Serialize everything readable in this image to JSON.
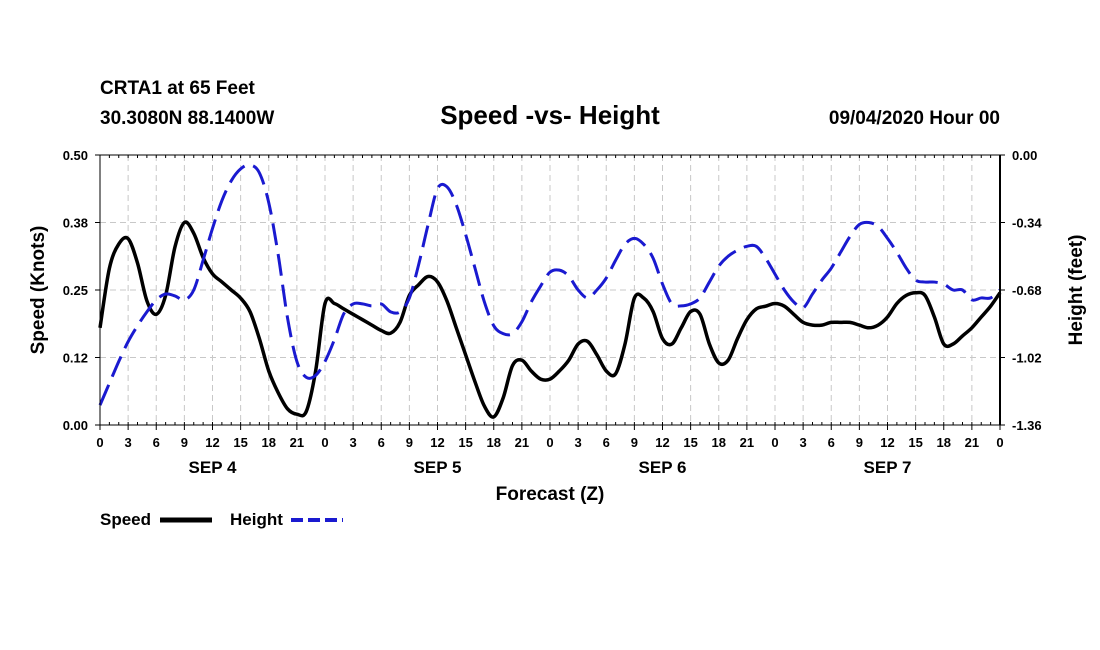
{
  "header": {
    "station": "CRTA1 at 65 Feet",
    "coords": "30.3080N 88.1400W",
    "title": "Speed -vs- Height",
    "datetime": "09/04/2020 Hour 00"
  },
  "colors": {
    "speed": "#000000",
    "height": "#1a1ad0"
  },
  "chart_data": {
    "type": "line",
    "title": "Speed -vs- Height",
    "xlabel": "Forecast (Z)",
    "ylabel": "Speed (Knots)",
    "y2label": "Height (feet)",
    "xlim": [
      0,
      96
    ],
    "ylim": [
      0,
      0.5
    ],
    "y2lim": [
      -1.36,
      0.0
    ],
    "yticks": [
      "0.00",
      "0.12",
      "0.25",
      "0.38",
      "0.50"
    ],
    "y2ticks": [
      "-1.36",
      "-1.02",
      "-0.68",
      "-0.34",
      "0.00"
    ],
    "xtick_labels": [
      "0",
      "3",
      "6",
      "9",
      "12",
      "15",
      "18",
      "21",
      "0",
      "3",
      "6",
      "9",
      "12",
      "15",
      "18",
      "21",
      "0",
      "3",
      "6",
      "9",
      "12",
      "15",
      "18",
      "21",
      "0",
      "3",
      "6",
      "9",
      "12",
      "15",
      "18",
      "21",
      "0"
    ],
    "days": [
      {
        "label": "SEP 4",
        "hour": 12
      },
      {
        "label": "SEP 5",
        "hour": 36
      },
      {
        "label": "SEP 6",
        "hour": 60
      },
      {
        "label": "SEP 7",
        "hour": 84
      }
    ],
    "legend": {
      "position": "bottom-left"
    },
    "series": [
      {
        "name": "Speed",
        "axis": "left",
        "style": "solid",
        "x": [
          0,
          1,
          2,
          3,
          4,
          5,
          6,
          7,
          8,
          9,
          10,
          11,
          12,
          13,
          14,
          15,
          16,
          17,
          18,
          19,
          20,
          21,
          22,
          23,
          24,
          25,
          26,
          27,
          28,
          29,
          30,
          31,
          32,
          33,
          34,
          35,
          36,
          37,
          38,
          39,
          40,
          41,
          42,
          43,
          44,
          45,
          46,
          47,
          48,
          49,
          50,
          51,
          52,
          53,
          54,
          55,
          56,
          57,
          58,
          59,
          60,
          61,
          62,
          63,
          64,
          65,
          66,
          67,
          68,
          69,
          70,
          71,
          72,
          73,
          74,
          75,
          76,
          77,
          78,
          79,
          80,
          81,
          82,
          83,
          84,
          85,
          86,
          87,
          88,
          89,
          90,
          91,
          92,
          93,
          94,
          95,
          96
        ],
        "values": [
          0.18,
          0.29,
          0.335,
          0.345,
          0.3,
          0.23,
          0.205,
          0.24,
          0.33,
          0.375,
          0.355,
          0.31,
          0.28,
          0.265,
          0.25,
          0.235,
          0.21,
          0.16,
          0.1,
          0.06,
          0.03,
          0.02,
          0.025,
          0.1,
          0.225,
          0.225,
          0.215,
          0.205,
          0.195,
          0.185,
          0.175,
          0.17,
          0.19,
          0.24,
          0.26,
          0.275,
          0.265,
          0.23,
          0.18,
          0.13,
          0.08,
          0.035,
          0.015,
          0.05,
          0.11,
          0.12,
          0.1,
          0.085,
          0.085,
          0.1,
          0.12,
          0.15,
          0.155,
          0.13,
          0.1,
          0.095,
          0.15,
          0.235,
          0.235,
          0.21,
          0.16,
          0.15,
          0.18,
          0.21,
          0.205,
          0.15,
          0.115,
          0.12,
          0.16,
          0.195,
          0.215,
          0.22,
          0.225,
          0.22,
          0.205,
          0.19,
          0.185,
          0.185,
          0.19,
          0.19,
          0.19,
          0.185,
          0.18,
          0.185,
          0.2,
          0.225,
          0.24,
          0.245,
          0.24,
          0.2,
          0.15,
          0.15,
          0.165,
          0.18,
          0.2,
          0.22,
          0.245
        ]
      },
      {
        "name": "Height",
        "axis": "right",
        "style": "dashed",
        "x": [
          0,
          1,
          2,
          3,
          4,
          5,
          6,
          7,
          8,
          9,
          10,
          11,
          12,
          13,
          14,
          15,
          16,
          17,
          18,
          19,
          20,
          21,
          22,
          23,
          24,
          25,
          26,
          27,
          28,
          29,
          30,
          31,
          32,
          33,
          34,
          35,
          36,
          37,
          38,
          39,
          40,
          41,
          42,
          43,
          44,
          45,
          46,
          47,
          48,
          49,
          50,
          51,
          52,
          53,
          54,
          55,
          56,
          57,
          58,
          59,
          60,
          61,
          62,
          63,
          64,
          65,
          66,
          67,
          68,
          69,
          70,
          71,
          72,
          73,
          74,
          75,
          76,
          77,
          78,
          79,
          80,
          81,
          82,
          83,
          84,
          85,
          86,
          87,
          88,
          89,
          90,
          91,
          92,
          93,
          94,
          95,
          96
        ],
        "values": [
          -1.26,
          -1.15,
          -1.04,
          -0.94,
          -0.86,
          -0.79,
          -0.73,
          -0.7,
          -0.71,
          -0.73,
          -0.68,
          -0.53,
          -0.37,
          -0.23,
          -0.13,
          -0.07,
          -0.05,
          -0.09,
          -0.24,
          -0.5,
          -0.82,
          -1.04,
          -1.12,
          -1.11,
          -1.04,
          -0.93,
          -0.8,
          -0.75,
          -0.75,
          -0.76,
          -0.75,
          -0.79,
          -0.79,
          -0.72,
          -0.55,
          -0.35,
          -0.17,
          -0.16,
          -0.25,
          -0.4,
          -0.57,
          -0.74,
          -0.86,
          -0.9,
          -0.9,
          -0.84,
          -0.74,
          -0.66,
          -0.59,
          -0.58,
          -0.61,
          -0.68,
          -0.72,
          -0.68,
          -0.62,
          -0.53,
          -0.45,
          -0.42,
          -0.45,
          -0.52,
          -0.65,
          -0.75,
          -0.76,
          -0.75,
          -0.72,
          -0.64,
          -0.56,
          -0.51,
          -0.48,
          -0.46,
          -0.46,
          -0.52,
          -0.6,
          -0.68,
          -0.74,
          -0.77,
          -0.7,
          -0.63,
          -0.57,
          -0.49,
          -0.41,
          -0.35,
          -0.34,
          -0.36,
          -0.42,
          -0.49,
          -0.57,
          -0.63,
          -0.64,
          -0.64,
          -0.65,
          -0.68,
          -0.68,
          -0.73,
          -0.72,
          -0.72,
          -0.68
        ]
      }
    ]
  }
}
